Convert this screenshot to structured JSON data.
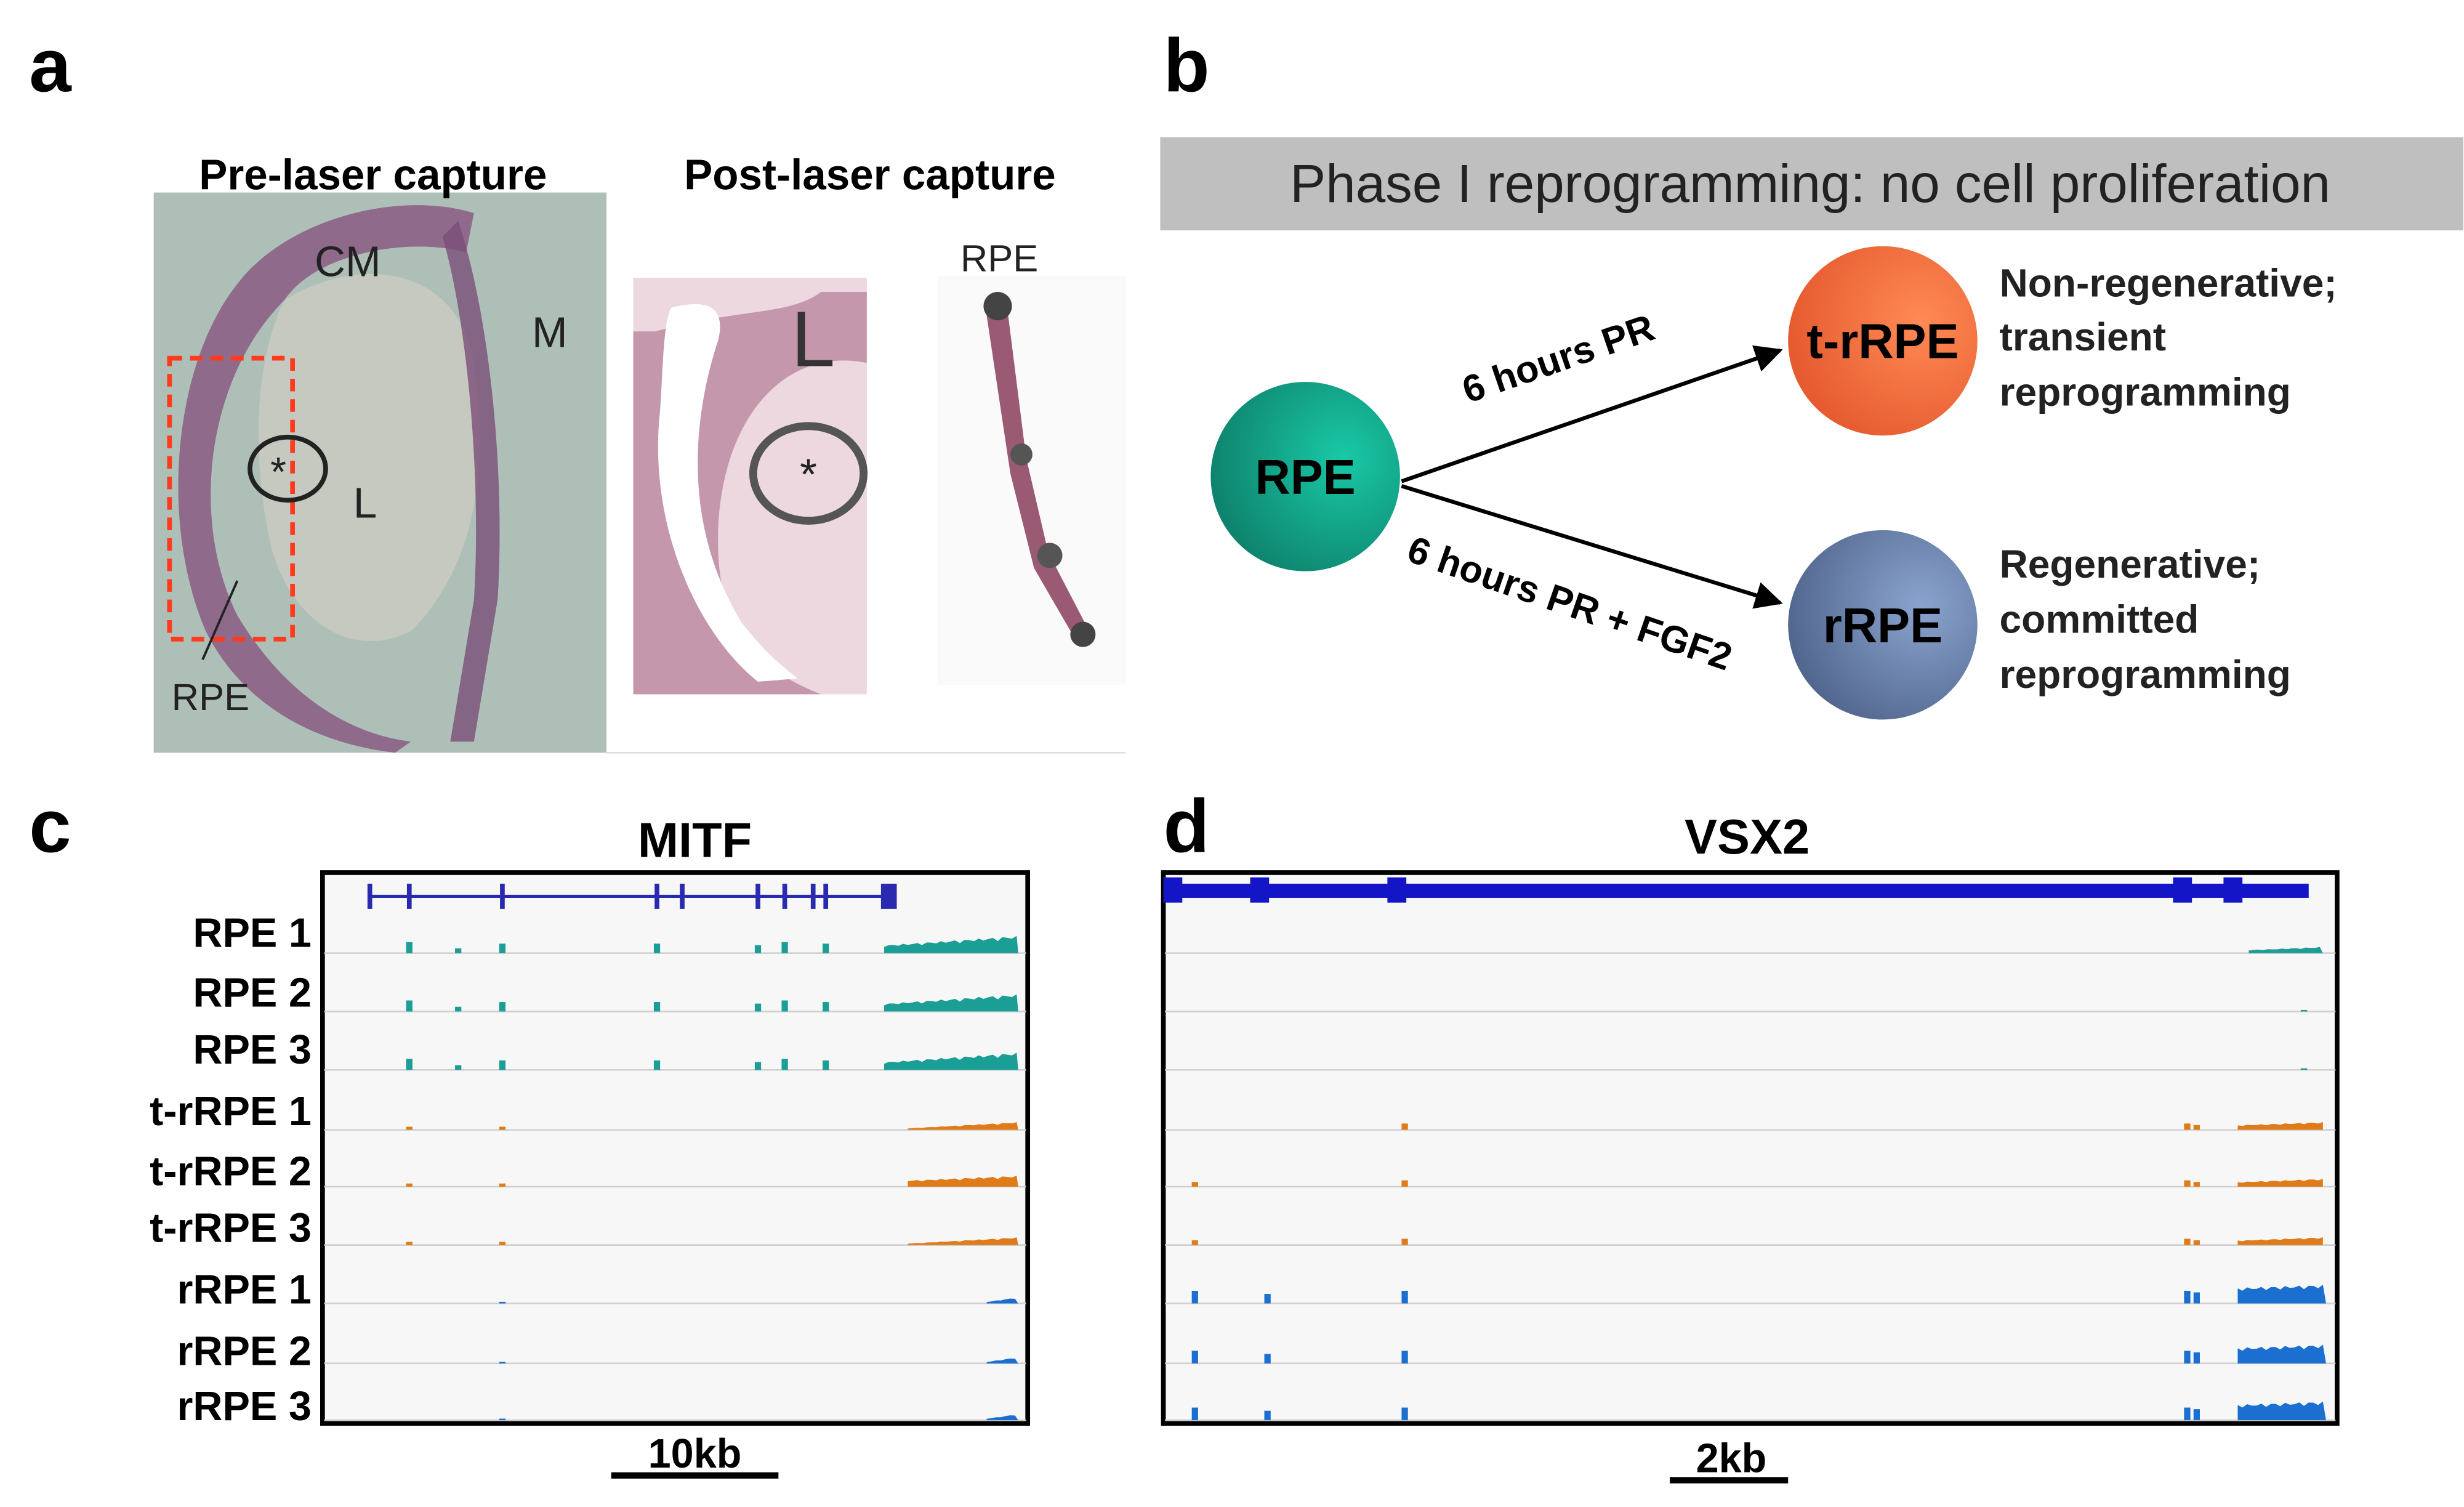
{
  "panels": {
    "a": {
      "letter": "a",
      "titles": [
        "Pre-laser capture",
        "Post-laser capture"
      ],
      "labels": [
        "CM",
        "M",
        "L",
        "RPE",
        "L",
        "RPE"
      ],
      "asterisks": [
        "*",
        "*"
      ]
    },
    "b": {
      "letter": "b",
      "banner": "Phase I reprogramming: no cell proliferation",
      "nodes": [
        {
          "label": "RPE"
        },
        {
          "label": "t-rRPE",
          "description": [
            "Non-regenerative;",
            "transient",
            "reprogramming"
          ]
        },
        {
          "label": "rRPE",
          "description": [
            "Regenerative;",
            "committed",
            "reprogramming"
          ]
        }
      ],
      "edges": [
        {
          "label": "6 hours PR"
        },
        {
          "label": "6 hours PR + FGF2"
        }
      ]
    },
    "c": {
      "letter": "c",
      "gene": "MITF",
      "tracks": [
        "RPE 1",
        "RPE 2",
        "RPE 3",
        "t-rRPE 1",
        "t-rRPE 2",
        "t-rRPE 3",
        "rRPE 1",
        "rRPE 2",
        "rRPE 3"
      ],
      "scale": "10kb"
    },
    "d": {
      "letter": "d",
      "gene": "VSX2",
      "scale": "2kb"
    }
  }
}
